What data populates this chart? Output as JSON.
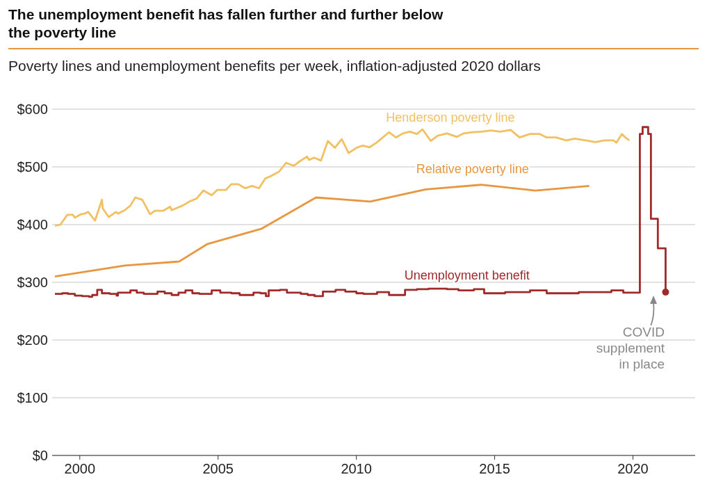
{
  "chart_data": {
    "type": "line",
    "title": "The unemployment benefit has fallen further and further below the poverty line",
    "subtitle": "Poverty lines and unemployment benefits per week, inflation-adjusted 2020 dollars",
    "xlim": [
      1999,
      2022.25
    ],
    "xticks": [
      2000,
      2005,
      2010,
      2015,
      2020
    ],
    "ylim": [
      0,
      600
    ],
    "yticks": [
      {
        "value": 0,
        "label": "$0"
      },
      {
        "value": 100,
        "label": "$100"
      },
      {
        "value": 200,
        "label": "$200"
      },
      {
        "value": 300,
        "label": "$300"
      },
      {
        "value": 400,
        "label": "$400"
      },
      {
        "value": 500,
        "label": "$500"
      },
      {
        "value": 600,
        "label": "$600"
      }
    ],
    "grid": "y",
    "legend": false,
    "annotations": [
      "COVID supplement in place"
    ],
    "series": [
      {
        "name": "Henderson poverty line",
        "color": "#f2c063",
        "x": [
          1999.1,
          1999.3,
          1999.55,
          1999.75,
          1999.82,
          2000.05,
          2000.18,
          2000.3,
          2000.55,
          2000.8,
          2000.83,
          2001.05,
          2001.31,
          2001.38,
          2001.63,
          2001.83,
          2002.01,
          2002.26,
          2002.54,
          2002.71,
          2003.02,
          2003.27,
          2003.32,
          2003.72,
          2003.97,
          2004.22,
          2004.47,
          2004.77,
          2004.97,
          2005.28,
          2005.48,
          2005.73,
          2005.98,
          2006.23,
          2006.48,
          2006.71,
          2006.91,
          2007.21,
          2007.46,
          2007.74,
          2007.96,
          2008.22,
          2008.29,
          2008.47,
          2008.72,
          2008.97,
          2009.22,
          2009.47,
          2009.72,
          2010.0,
          2010.23,
          2010.48,
          2010.73,
          2011.18,
          2011.43,
          2011.68,
          2011.93,
          2012.19,
          2012.39,
          2012.69,
          2012.94,
          2013.27,
          2013.64,
          2013.87,
          2014.2,
          2014.52,
          2014.87,
          2015.2,
          2015.58,
          2015.9,
          2016.28,
          2016.63,
          2016.88,
          2017.21,
          2017.59,
          2017.89,
          2018.29,
          2018.64,
          2018.97,
          2019.3,
          2019.4,
          2019.6,
          2019.72,
          2019.87
        ],
        "values": [
          398,
          400,
          417,
          417,
          412,
          418,
          419,
          422,
          407,
          443,
          428,
          413,
          422,
          419,
          425,
          433,
          447,
          443,
          418,
          424,
          424,
          431,
          425,
          433,
          440,
          445,
          459,
          451,
          460,
          460,
          470,
          470,
          463,
          467,
          463,
          480,
          484,
          492,
          507,
          502,
          510,
          518,
          512,
          516,
          511,
          545,
          533,
          548,
          524,
          533,
          537,
          534,
          542,
          560,
          551,
          558,
          561,
          557,
          565,
          545,
          554,
          558,
          552,
          558,
          560,
          561,
          563,
          561,
          564,
          551,
          557,
          557,
          551,
          551,
          546,
          549,
          546,
          543,
          546,
          546,
          542,
          557,
          551,
          546
        ]
      },
      {
        "name": "Relative poverty line",
        "color": "#e8963f",
        "x": [
          1999.1,
          2001.63,
          2003.59,
          2004.6,
          2006.58,
          2008.54,
          2010.5,
          2012.51,
          2014.5,
          2016.46,
          2018.42
        ],
        "values": [
          310,
          329,
          336,
          366,
          393,
          447,
          440,
          461,
          469,
          459,
          467
        ]
      },
      {
        "name": "Unemployment benefit",
        "type": "step",
        "color": "#a02a2a",
        "x": [
          1999.1,
          1999.37,
          1999.57,
          1999.82,
          2000.08,
          2000.33,
          2000.45,
          2000.63,
          2000.8,
          2001.08,
          2001.33,
          2001.38,
          2001.83,
          2002.06,
          2002.31,
          2002.81,
          2003.07,
          2003.32,
          2003.57,
          2003.82,
          2004.07,
          2004.32,
          2004.77,
          2005.08,
          2005.48,
          2005.78,
          2006.28,
          2006.53,
          2006.73,
          2006.83,
          2007.24,
          2007.49,
          2007.99,
          2008.24,
          2008.49,
          2008.79,
          2009.25,
          2009.6,
          2010.0,
          2010.25,
          2010.75,
          2011.18,
          2011.76,
          2012.19,
          2012.61,
          2013.27,
          2013.69,
          2014.25,
          2014.62,
          2015.38,
          2016.28,
          2016.88,
          2018.04,
          2019.22,
          2019.65,
          2020.25,
          2020.35,
          2020.55,
          2020.65,
          2020.9,
          2021.18
        ],
        "values": [
          280,
          281,
          280,
          277,
          276,
          275,
          278,
          287,
          281,
          280,
          277,
          282,
          286,
          282,
          280,
          284,
          281,
          278,
          282,
          286,
          281,
          280,
          286,
          282,
          281,
          278,
          282,
          281,
          276,
          286,
          287,
          282,
          280,
          278,
          276,
          284,
          287,
          284,
          281,
          280,
          283,
          278,
          287,
          288,
          289,
          288,
          286,
          288,
          281,
          283,
          286,
          281,
          283,
          286,
          282,
          557,
          569,
          557,
          410,
          359,
          283
        ]
      },
      {
        "type": "scatter",
        "color": "#a02a2a",
        "x": [
          2021.18
        ],
        "values": [
          283
        ]
      }
    ]
  }
}
